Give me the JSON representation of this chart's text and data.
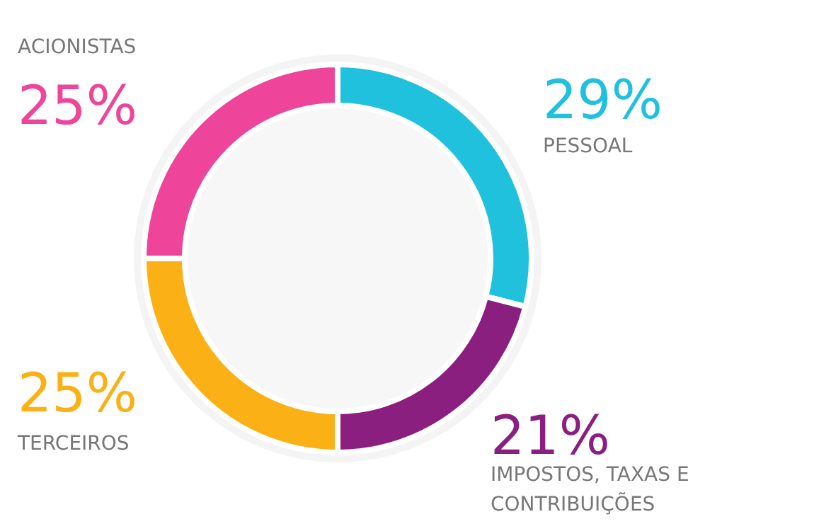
{
  "chart_data": {
    "type": "donut",
    "categories": [
      "PESSOAL",
      "IMPOSTOS, TAXAS E\nCONTRIBUIÇÕES",
      "TERCEIROS",
      "ACIONISTAS"
    ],
    "values": [
      29,
      21,
      25,
      25
    ],
    "colors": [
      "#1fc1dc",
      "#8a1f80",
      "#fbb116",
      "#ee4499"
    ],
    "value_labels": [
      "29%",
      "21%",
      "25%",
      "25%"
    ]
  }
}
